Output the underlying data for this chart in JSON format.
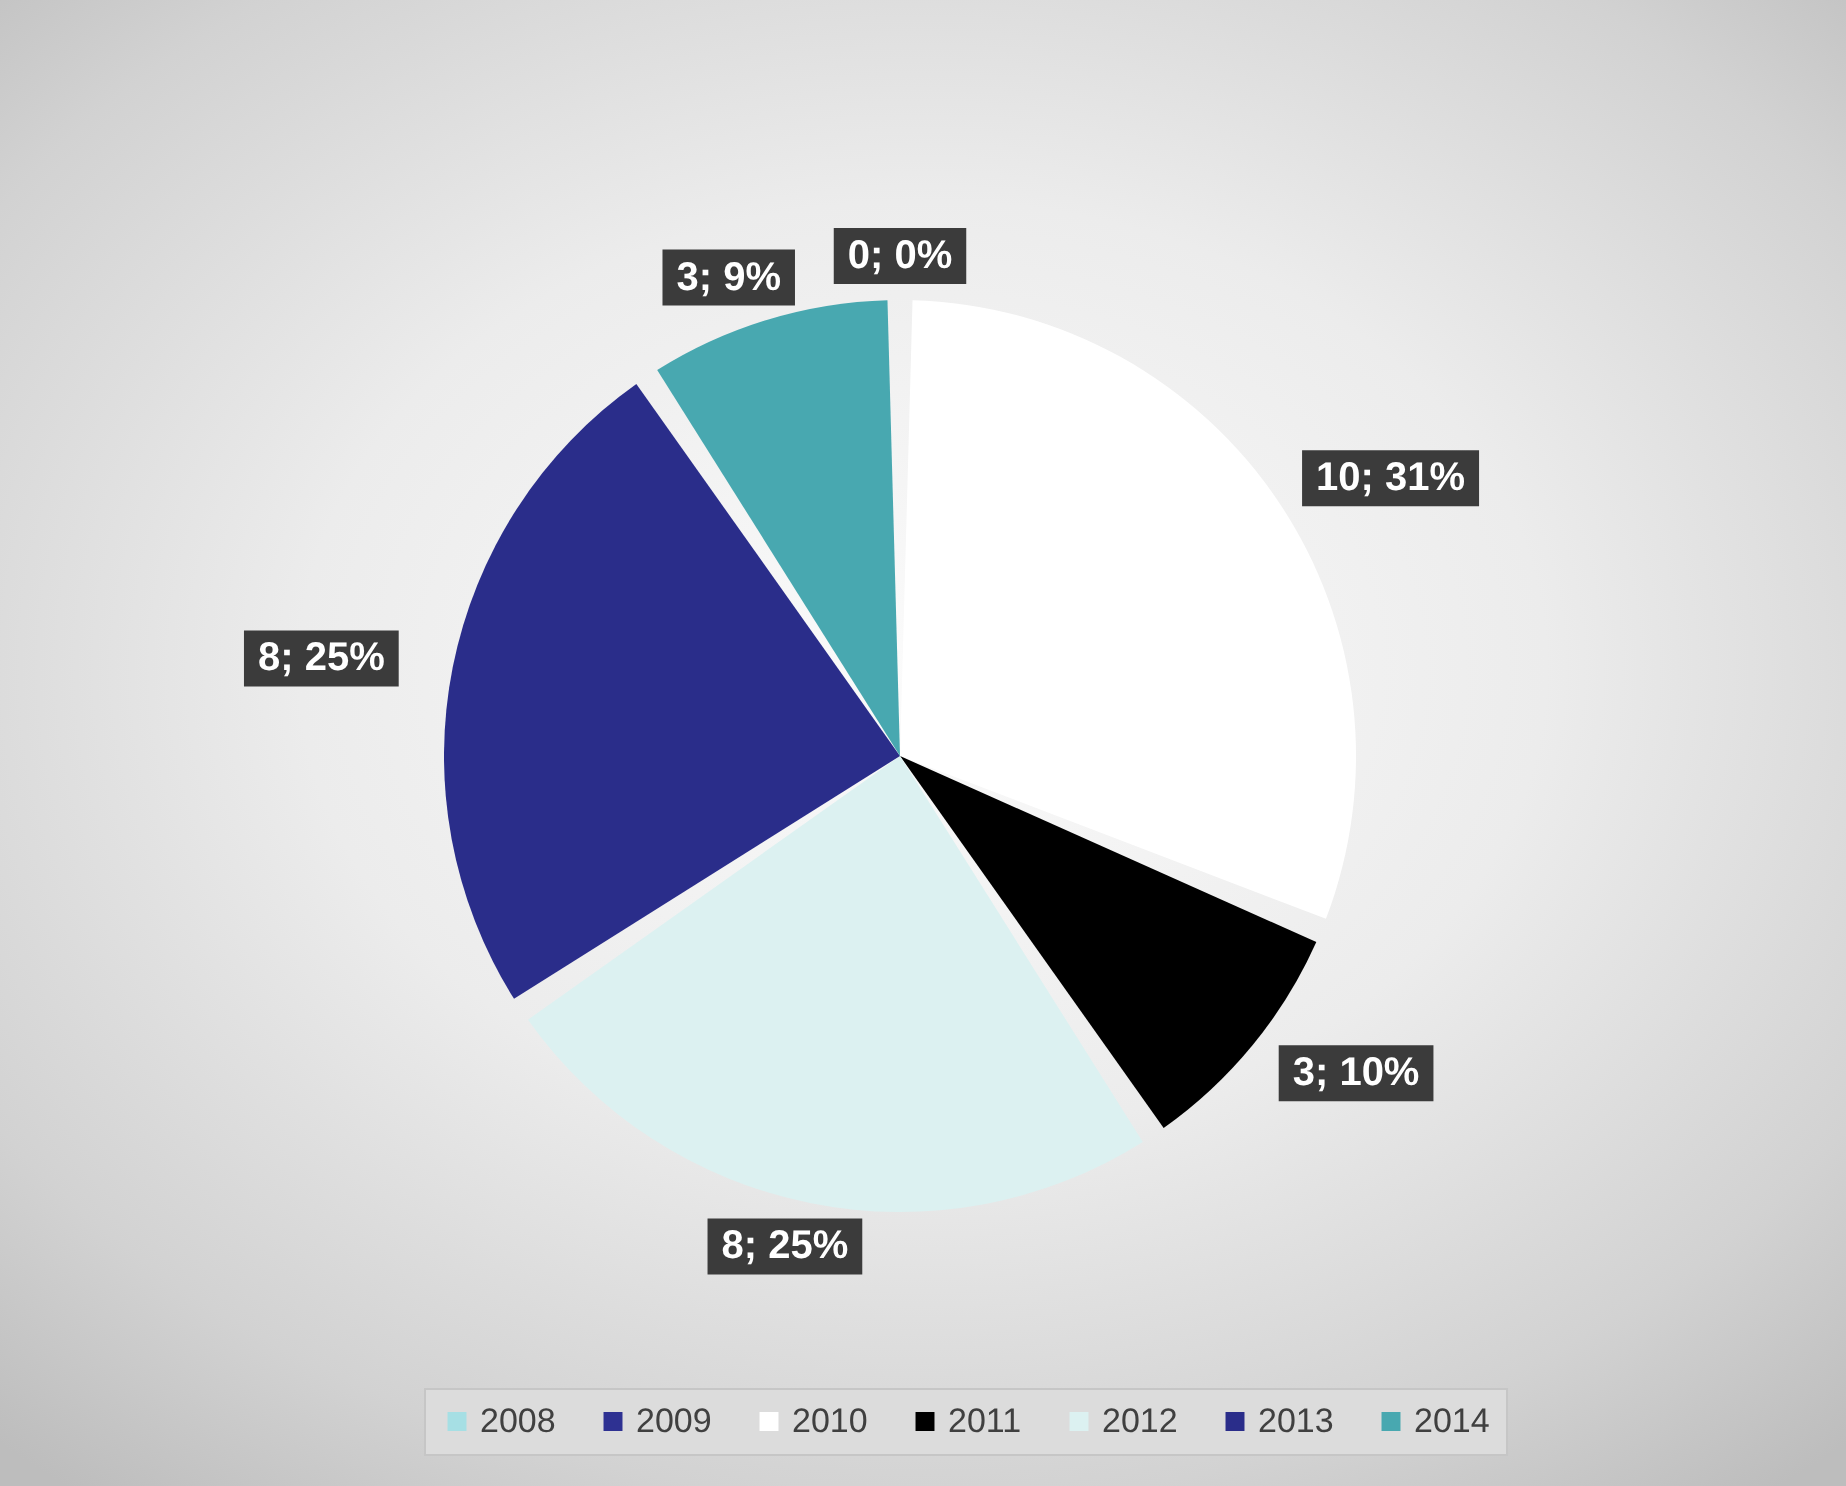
{
  "chart_data": {
    "type": "pie",
    "categories": [
      "2008",
      "2009",
      "2010",
      "2011",
      "2012",
      "2013",
      "2014"
    ],
    "values": [
      0,
      0,
      10,
      3,
      8,
      8,
      3
    ],
    "colors": [
      "#a6dfe4",
      "#2e3192",
      "#ffffff",
      "#000000",
      "#dcf1f1",
      "#2a2d8a",
      "#48a8b0"
    ],
    "value_labels": [
      "0; 0%",
      null,
      "10; 31%",
      "3; 10%",
      "8; 25%",
      "8; 25%",
      "3; 9%"
    ],
    "legend": "bottom"
  }
}
